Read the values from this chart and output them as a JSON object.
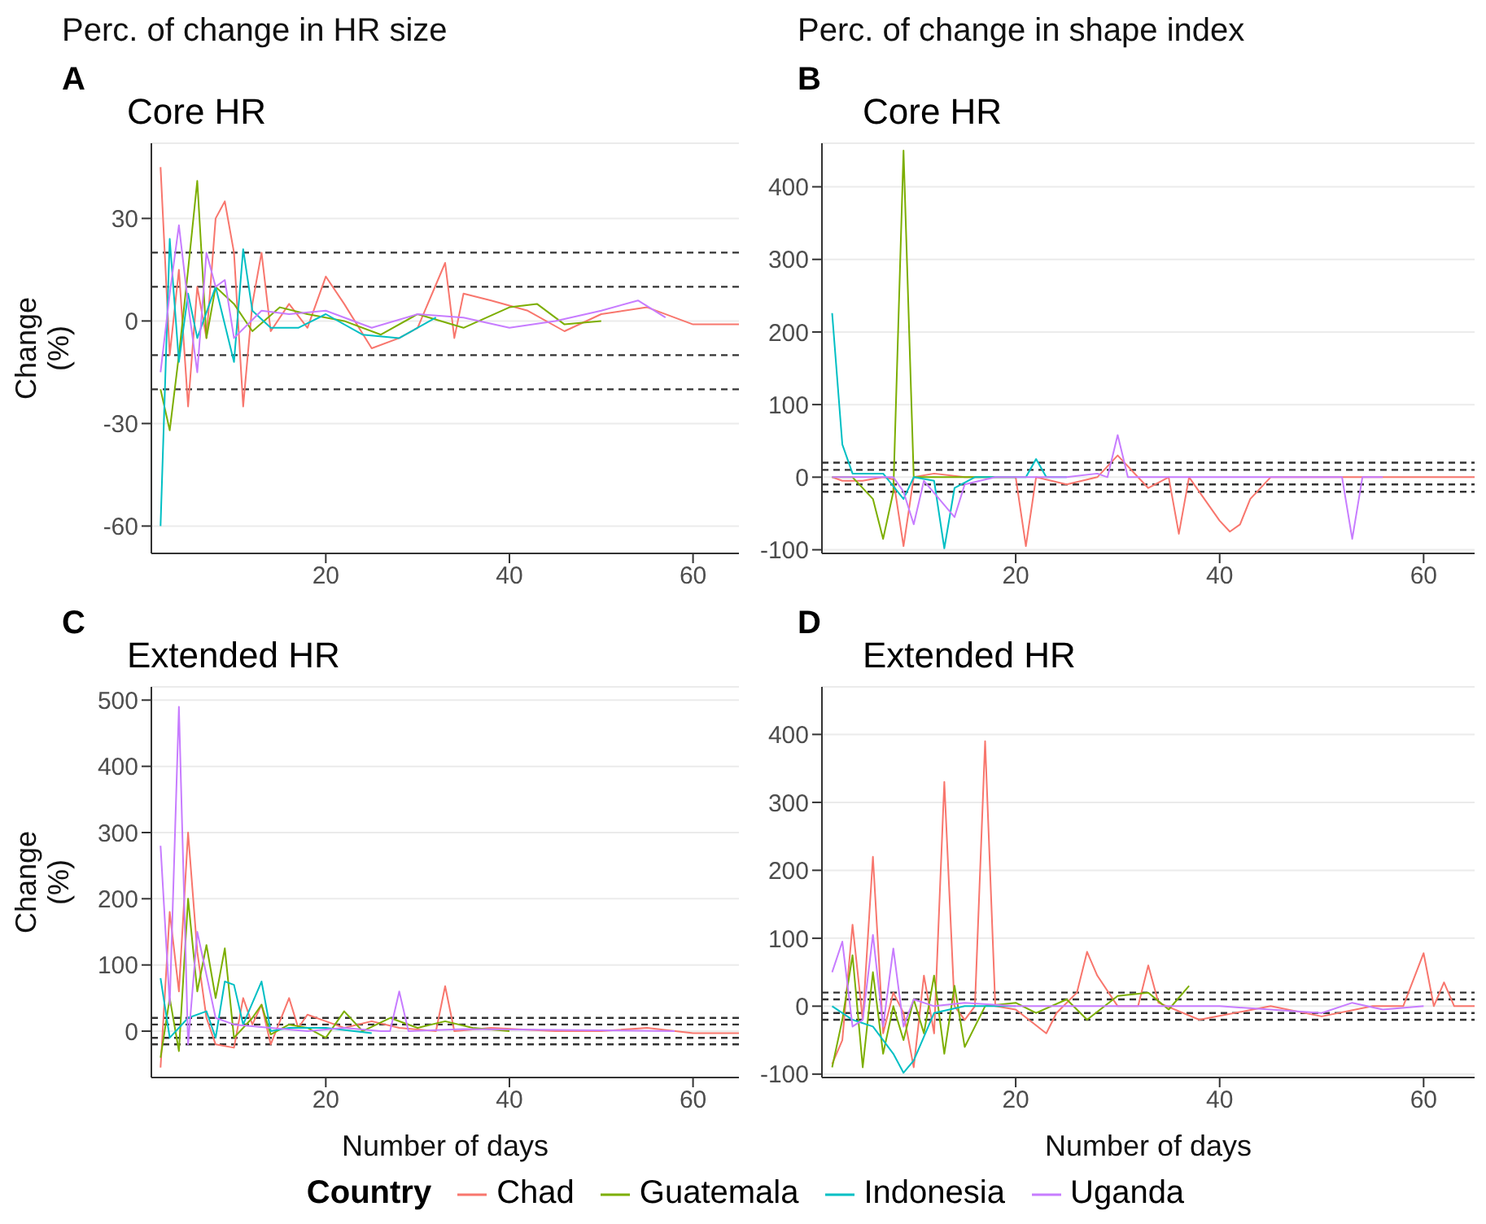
{
  "chart_data": [
    {
      "type": "line",
      "subtitle": "Perc. of change in HR size",
      "title": "Core HR",
      "annotations": [
        "A"
      ],
      "ylabel": "Change\n(%)",
      "legend": "bottom",
      "legend_title": "Country",
      "xlim": [
        1,
        65
      ],
      "xticks": [
        20,
        40,
        60
      ],
      "ylim": [
        -68,
        52
      ],
      "yticks": [
        -60,
        -30,
        0,
        30
      ],
      "grid": "y",
      "line_style": "solid",
      "ref_lines": [
        {
          "axis": "y",
          "value": 20,
          "color": "#333333",
          "line_style": "dashed"
        },
        {
          "axis": "y",
          "value": 10,
          "color": "#333333",
          "line_style": "dashed"
        },
        {
          "axis": "y",
          "value": -10,
          "color": "#333333",
          "line_style": "dashed"
        },
        {
          "axis": "y",
          "value": -20,
          "color": "#333333",
          "line_style": "dashed"
        }
      ],
      "series": [
        {
          "name": "Chad",
          "color": "#f8766d",
          "x": [
            2,
            3,
            4,
            5,
            6,
            7,
            8,
            9,
            10,
            11,
            12,
            13,
            14,
            16,
            18,
            20,
            22,
            25,
            28,
            30,
            33,
            34,
            35,
            38,
            42,
            46,
            50,
            55,
            60,
            65
          ],
          "values": [
            45,
            -10,
            15,
            -25,
            10,
            -5,
            30,
            35,
            20,
            -25,
            5,
            20,
            -3,
            5,
            -2,
            13,
            5,
            -8,
            -5,
            -2,
            17,
            -5,
            8,
            6,
            3,
            -3,
            2,
            4,
            -1,
            -1
          ]
        },
        {
          "name": "Guatemala",
          "color": "#7cae00",
          "x": [
            2,
            3,
            4,
            5,
            6,
            7,
            8,
            10,
            12,
            15,
            18,
            22,
            26,
            30,
            35,
            40,
            43,
            46,
            50
          ],
          "values": [
            -20,
            -32,
            -10,
            15,
            41,
            -5,
            10,
            5,
            -3,
            4,
            2,
            0,
            -4,
            2,
            -2,
            4,
            5,
            -1,
            0
          ]
        },
        {
          "name": "Indonesia",
          "color": "#00bfc4",
          "x": [
            2,
            3,
            4,
            5,
            6,
            8,
            10,
            11,
            12,
            14,
            17,
            20,
            24,
            28,
            32
          ],
          "values": [
            -60,
            24,
            -12,
            8,
            -5,
            10,
            -12,
            21,
            3,
            -2,
            -2,
            2,
            -4,
            -5,
            1
          ]
        },
        {
          "name": "Uganda",
          "color": "#c77cff",
          "x": [
            2,
            3,
            4,
            5,
            6,
            7,
            8,
            9,
            10,
            13,
            16,
            20,
            25,
            30,
            35,
            40,
            45,
            50,
            54,
            57
          ],
          "values": [
            -15,
            8,
            28,
            5,
            -15,
            20,
            10,
            12,
            -5,
            3,
            2,
            3,
            -2,
            2,
            1,
            -2,
            0,
            3,
            6,
            1
          ]
        }
      ]
    },
    {
      "type": "line",
      "subtitle": "Perc. of change in shape index",
      "title": "Core HR",
      "annotations": [
        "B"
      ],
      "xlim": [
        1,
        65
      ],
      "xticks": [
        20,
        40,
        60
      ],
      "ylim": [
        -105,
        460
      ],
      "yticks": [
        -100,
        0,
        100,
        200,
        300,
        400
      ],
      "grid": "y",
      "line_style": "solid",
      "ref_lines": [
        {
          "axis": "y",
          "value": 20,
          "color": "#333333",
          "line_style": "dashed"
        },
        {
          "axis": "y",
          "value": 10,
          "color": "#333333",
          "line_style": "dashed"
        },
        {
          "axis": "y",
          "value": -10,
          "color": "#333333",
          "line_style": "dashed"
        },
        {
          "axis": "y",
          "value": -20,
          "color": "#333333",
          "line_style": "dashed"
        }
      ],
      "series": [
        {
          "color": "#f8766d",
          "x": [
            2,
            3,
            5,
            7,
            8,
            9,
            10,
            12,
            15,
            18,
            20,
            21,
            22,
            25,
            28,
            30,
            33,
            35,
            36,
            37,
            40,
            41,
            42,
            43,
            45,
            50,
            55,
            60,
            65
          ],
          "values": [
            0,
            -5,
            -5,
            0,
            -3,
            -95,
            0,
            5,
            0,
            0,
            0,
            -95,
            0,
            -10,
            0,
            30,
            -15,
            0,
            -78,
            0,
            -60,
            -75,
            -65,
            -30,
            0,
            0,
            0,
            0,
            0
          ]
        },
        {
          "color": "#7cae00",
          "x": [
            2,
            4,
            6,
            7,
            8,
            9,
            10,
            12,
            15,
            20
          ],
          "values": [
            0,
            0,
            -30,
            -85,
            -20,
            450,
            0,
            0,
            0,
            0
          ]
        },
        {
          "color": "#00bfc4",
          "x": [
            2,
            3,
            4,
            5,
            7,
            9,
            10,
            12,
            13,
            14,
            16,
            19,
            21,
            22,
            23,
            25
          ],
          "values": [
            226,
            45,
            5,
            5,
            5,
            -30,
            0,
            -5,
            -98,
            -15,
            0,
            0,
            0,
            25,
            0,
            0
          ]
        },
        {
          "color": "#c77cff",
          "x": [
            2,
            5,
            8,
            9,
            10,
            11,
            14,
            15,
            18,
            25,
            28,
            29,
            30,
            31,
            35,
            45,
            52,
            53,
            54,
            56
          ],
          "values": [
            0,
            0,
            0,
            -20,
            -65,
            -5,
            -55,
            -10,
            0,
            0,
            5,
            0,
            58,
            0,
            0,
            0,
            0,
            -85,
            0,
            0
          ]
        }
      ]
    },
    {
      "type": "line",
      "title": "Extended HR",
      "annotations": [
        "C"
      ],
      "ylabel": "Change\n(%)",
      "xlabel": "Number of days",
      "xlim": [
        1,
        65
      ],
      "xticks": [
        20,
        40,
        60
      ],
      "ylim": [
        -70,
        520
      ],
      "yticks": [
        0,
        100,
        200,
        300,
        400,
        500
      ],
      "grid": "y",
      "line_style": "solid",
      "ref_lines": [
        {
          "axis": "y",
          "value": 20,
          "color": "#333333",
          "line_style": "dashed"
        },
        {
          "axis": "y",
          "value": 10,
          "color": "#333333",
          "line_style": "dashed"
        },
        {
          "axis": "y",
          "value": -10,
          "color": "#333333",
          "line_style": "dashed"
        },
        {
          "axis": "y",
          "value": -20,
          "color": "#333333",
          "line_style": "dashed"
        }
      ],
      "series": [
        {
          "color": "#f8766d",
          "x": [
            2,
            3,
            4,
            5,
            6,
            7,
            8,
            10,
            11,
            12,
            13,
            14,
            16,
            17,
            18,
            20,
            22,
            25,
            28,
            32,
            33,
            34,
            38,
            45,
            50,
            55,
            60,
            65
          ],
          "values": [
            -55,
            180,
            60,
            300,
            120,
            20,
            -20,
            -25,
            50,
            10,
            40,
            -20,
            50,
            5,
            25,
            15,
            5,
            15,
            5,
            0,
            68,
            0,
            5,
            0,
            0,
            5,
            -3,
            -3
          ]
        },
        {
          "color": "#7cae00",
          "x": [
            2,
            3,
            4,
            5,
            6,
            7,
            8,
            9,
            10,
            12,
            13,
            14,
            16,
            18,
            20,
            22,
            24,
            27,
            30,
            33,
            36,
            40
          ],
          "values": [
            -40,
            50,
            -30,
            200,
            60,
            130,
            50,
            125,
            -10,
            20,
            40,
            -5,
            10,
            5,
            -10,
            30,
            0,
            20,
            5,
            15,
            5,
            0
          ]
        },
        {
          "color": "#00bfc4",
          "x": [
            2,
            3,
            5,
            7,
            8,
            9,
            10,
            11,
            13,
            14,
            16,
            20,
            25
          ],
          "values": [
            80,
            -10,
            20,
            30,
            -10,
            75,
            70,
            10,
            75,
            0,
            5,
            5,
            -3
          ]
        },
        {
          "color": "#c77cff",
          "x": [
            2,
            3,
            4,
            5,
            6,
            8,
            10,
            14,
            18,
            22,
            26,
            27,
            28,
            29,
            35,
            45,
            58
          ],
          "values": [
            280,
            40,
            490,
            -20,
            150,
            20,
            10,
            5,
            0,
            5,
            0,
            0,
            60,
            0,
            3,
            2,
            0
          ]
        }
      ]
    },
    {
      "type": "line",
      "title": "Extended HR",
      "annotations": [
        "D"
      ],
      "xlabel": "Number of days",
      "xlim": [
        1,
        65
      ],
      "xticks": [
        20,
        40,
        60
      ],
      "ylim": [
        -105,
        470
      ],
      "yticks": [
        -100,
        0,
        100,
        200,
        300,
        400
      ],
      "grid": "y",
      "line_style": "solid",
      "ref_lines": [
        {
          "axis": "y",
          "value": 20,
          "color": "#333333",
          "line_style": "dashed"
        },
        {
          "axis": "y",
          "value": 10,
          "color": "#333333",
          "line_style": "dashed"
        },
        {
          "axis": "y",
          "value": -10,
          "color": "#333333",
          "line_style": "dashed"
        },
        {
          "axis": "y",
          "value": -20,
          "color": "#333333",
          "line_style": "dashed"
        }
      ],
      "series": [
        {
          "color": "#f8766d",
          "x": [
            2,
            3,
            4,
            5,
            6,
            7,
            8,
            9,
            10,
            11,
            12,
            13,
            14,
            15,
            16,
            17,
            18,
            20,
            23,
            24,
            26,
            27,
            28,
            30,
            32,
            33,
            34,
            38,
            45,
            50,
            55,
            58,
            60,
            61,
            62,
            63,
            65
          ],
          "values": [
            -85,
            -50,
            120,
            -20,
            220,
            -40,
            20,
            -10,
            -90,
            45,
            -40,
            330,
            0,
            -20,
            0,
            390,
            0,
            -5,
            -40,
            -10,
            20,
            80,
            45,
            0,
            0,
            60,
            5,
            -20,
            0,
            -15,
            0,
            0,
            78,
            0,
            35,
            0,
            0
          ]
        },
        {
          "color": "#7cae00",
          "x": [
            2,
            3,
            4,
            5,
            6,
            7,
            8,
            9,
            10,
            11,
            12,
            13,
            14,
            15,
            17,
            20,
            22,
            25,
            27,
            30,
            33,
            35,
            37
          ],
          "values": [
            -90,
            -20,
            75,
            -90,
            50,
            -70,
            0,
            -50,
            10,
            -40,
            45,
            -70,
            30,
            -60,
            0,
            5,
            -10,
            10,
            -20,
            15,
            20,
            -5,
            30
          ]
        },
        {
          "color": "#00bfc4",
          "x": [
            2,
            4,
            6,
            8,
            9,
            10,
            12,
            15,
            20
          ],
          "values": [
            0,
            -20,
            -30,
            -70,
            -98,
            -80,
            -10,
            0,
            0
          ]
        },
        {
          "color": "#c77cff",
          "x": [
            2,
            3,
            4,
            5,
            6,
            7,
            8,
            9,
            10,
            12,
            15,
            20,
            30,
            40,
            50,
            53,
            56,
            60
          ],
          "values": [
            50,
            95,
            -30,
            -20,
            105,
            -30,
            85,
            -30,
            10,
            0,
            5,
            0,
            0,
            0,
            -10,
            5,
            -5,
            0
          ]
        }
      ]
    }
  ]
}
